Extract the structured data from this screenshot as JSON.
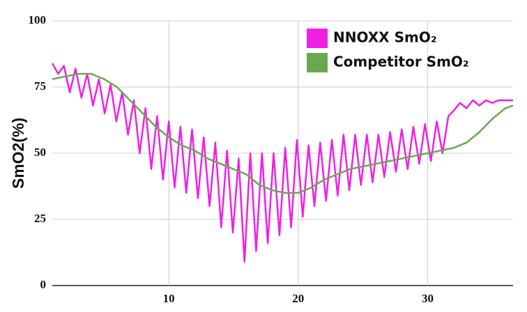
{
  "chart_data": {
    "type": "line",
    "ylabel": "SmO2(%)",
    "xlim": [
      1,
      36.6
    ],
    "xticks": [
      10,
      20,
      30
    ],
    "ylim": [
      0,
      100
    ],
    "yticks": [
      0,
      25,
      50,
      75,
      100
    ],
    "grid": true,
    "legend": "top-right",
    "series": [
      {
        "name": "NNOXX SmO₂",
        "color": "#f01fe6",
        "x": [
          1.0,
          1.45,
          1.9,
          2.35,
          2.8,
          3.25,
          3.7,
          4.15,
          4.6,
          5.05,
          5.5,
          5.95,
          6.4,
          6.85,
          7.3,
          7.75,
          8.2,
          8.65,
          9.1,
          9.55,
          10.0,
          10.45,
          10.9,
          11.35,
          11.8,
          12.25,
          12.7,
          13.15,
          13.6,
          14.05,
          14.5,
          14.95,
          15.4,
          15.85,
          16.3,
          16.75,
          17.2,
          17.65,
          18.1,
          18.55,
          19.0,
          19.45,
          19.9,
          20.35,
          20.8,
          21.25,
          21.7,
          22.15,
          22.6,
          23.05,
          23.5,
          23.95,
          24.4,
          24.85,
          25.3,
          25.75,
          26.2,
          26.65,
          27.1,
          27.55,
          28.0,
          28.45,
          28.9,
          29.35,
          29.8,
          30.25,
          30.7,
          31.15,
          31.6,
          32.0,
          32.5,
          33.0,
          33.5,
          34.0,
          34.5,
          35.0,
          35.5,
          36.0,
          36.6
        ],
        "values": [
          84,
          80,
          83,
          73,
          82,
          71,
          80,
          68,
          78,
          65,
          76,
          62,
          73,
          57,
          70,
          50,
          67,
          44,
          64,
          40,
          62,
          37,
          60,
          35,
          59,
          33,
          56,
          30,
          54,
          22,
          51,
          20,
          48,
          9,
          50,
          13,
          50,
          16,
          50,
          19,
          52,
          22,
          55,
          26,
          53,
          30,
          54,
          32,
          55,
          34,
          57,
          36,
          57,
          38,
          57,
          39,
          57,
          41,
          58,
          43,
          59,
          44,
          60,
          46,
          61,
          47,
          62,
          50,
          64,
          66,
          69,
          67,
          70,
          68,
          70,
          69,
          70,
          70,
          70
        ]
      },
      {
        "name": "Competitor SmO₂",
        "color": "#6aa84f",
        "x": [
          1,
          2,
          3,
          4,
          5,
          6,
          7,
          8,
          9,
          10,
          11,
          12,
          13,
          14,
          15,
          16,
          17,
          18,
          19,
          20,
          21,
          22,
          23,
          24,
          25,
          26,
          27,
          28,
          29,
          30,
          31,
          32,
          33,
          34,
          35,
          36,
          36.6
        ],
        "values": [
          78,
          79,
          80,
          80,
          78,
          75,
          70,
          65,
          60,
          56,
          53,
          51,
          48,
          46,
          44,
          42,
          38,
          36,
          35,
          35,
          37,
          40,
          42,
          44,
          45,
          46,
          47,
          48,
          49,
          50,
          51,
          52,
          54,
          58,
          63,
          67,
          68
        ]
      }
    ]
  }
}
